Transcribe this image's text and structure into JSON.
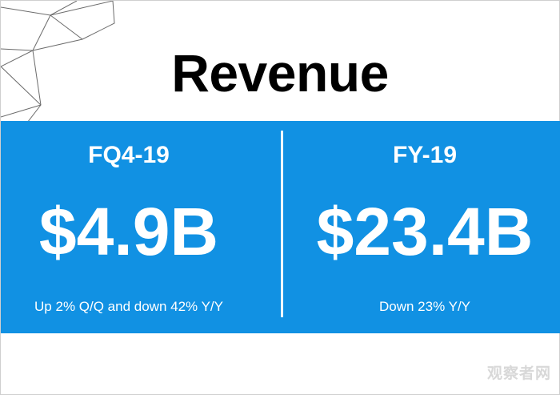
{
  "slide": {
    "title": "Revenue"
  },
  "left": {
    "period": "FQ4-19",
    "value": "$4.9B",
    "note": "Up 2% Q/Q and down 42% Y/Y"
  },
  "right": {
    "period": "FY-19",
    "value": "$23.4B",
    "note": "Down 23% Y/Y"
  },
  "watermark": {
    "text": "观察者网"
  },
  "colors": {
    "band": "#1191e3",
    "title": "#000000",
    "band_text": "#ffffff"
  }
}
